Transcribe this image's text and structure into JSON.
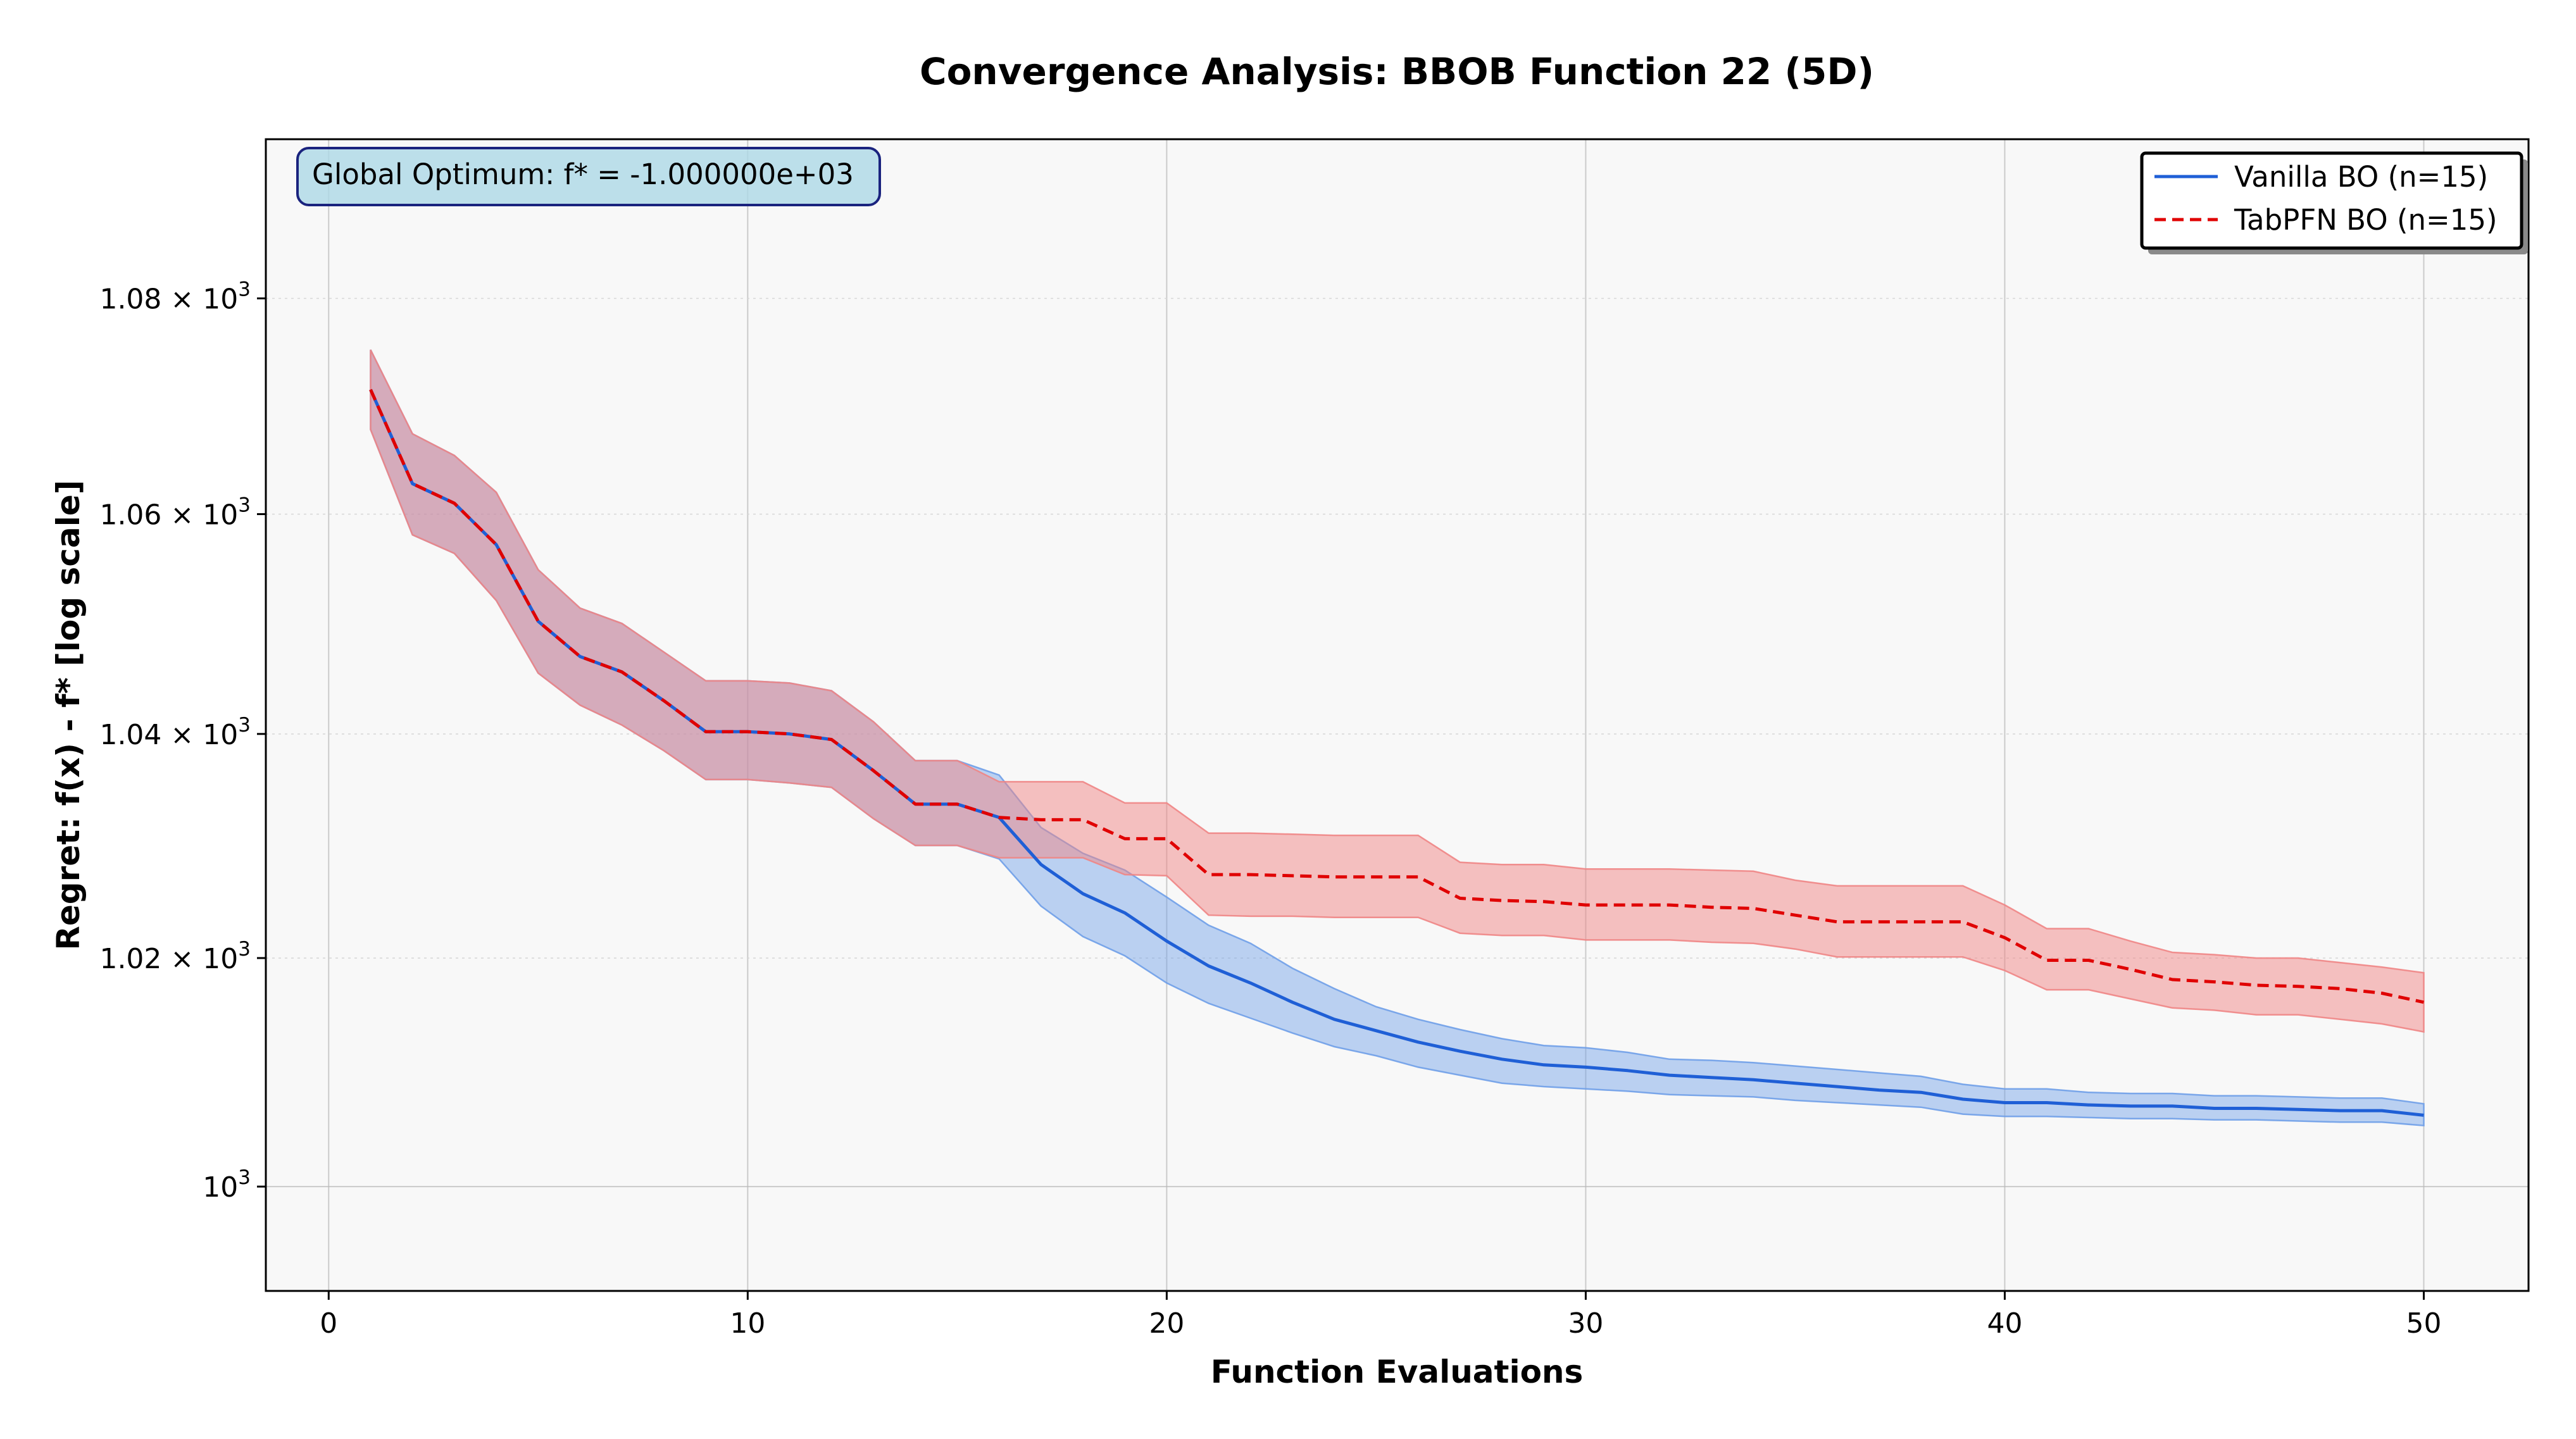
{
  "chart_data": {
    "type": "line",
    "title": "Convergence Analysis: BBOB Function 22 (5D)",
    "xlabel": "Function Evaluations",
    "ylabel": "Regret: f(x) - f* [log scale]",
    "y_scale": "log",
    "xlim": [
      -1.5,
      52.5
    ],
    "ylim": [
      991.0,
      1095.0
    ],
    "x_ticks": [
      0,
      10,
      20,
      30,
      40,
      50
    ],
    "y_ticks": [
      {
        "value": 1000,
        "mantissa": "",
        "base": "10",
        "exp": "3"
      },
      {
        "value": 1020,
        "mantissa": "1.02",
        "base": "10",
        "exp": "3"
      },
      {
        "value": 1040,
        "mantissa": "1.04",
        "base": "10",
        "exp": "3"
      },
      {
        "value": 1060,
        "mantissa": "1.06",
        "base": "10",
        "exp": "3"
      },
      {
        "value": 1080,
        "mantissa": "1.08",
        "base": "10",
        "exp": "3"
      }
    ],
    "grid": true,
    "legend_position": "top-right",
    "annotation": "Global Optimum: f* = -1.000000e+03",
    "x": [
      1,
      2,
      3,
      4,
      5,
      6,
      7,
      8,
      9,
      10,
      11,
      12,
      13,
      14,
      15,
      16,
      17,
      18,
      19,
      20,
      21,
      22,
      23,
      24,
      25,
      26,
      27,
      28,
      29,
      30,
      31,
      32,
      33,
      34,
      35,
      36,
      37,
      38,
      39,
      40,
      41,
      42,
      43,
      44,
      45,
      46,
      47,
      48,
      49,
      50
    ],
    "series": [
      {
        "name": "Vanilla BO (n=15)",
        "color": "#1f5fd6",
        "fill_color": "#6f9fe8",
        "dash": "solid",
        "mean": [
          1071.5,
          1062.8,
          1061.0,
          1057.2,
          1050.2,
          1047.0,
          1045.6,
          1043.0,
          1040.2,
          1040.2,
          1040.0,
          1039.5,
          1036.7,
          1033.7,
          1033.7,
          1032.5,
          1028.3,
          1025.7,
          1024.0,
          1021.5,
          1019.3,
          1017.8,
          1016.1,
          1014.6,
          1013.6,
          1012.6,
          1011.8,
          1011.1,
          1010.6,
          1010.4,
          1010.1,
          1009.7,
          1009.5,
          1009.3,
          1009.0,
          1008.7,
          1008.4,
          1008.2,
          1007.6,
          1007.3,
          1007.3,
          1007.1,
          1007.0,
          1007.0,
          1006.8,
          1006.8,
          1006.7,
          1006.6,
          1006.6,
          1006.2
        ],
        "lower": [
          1067.8,
          1058.1,
          1056.4,
          1052.1,
          1045.5,
          1042.6,
          1040.8,
          1038.5,
          1035.9,
          1035.9,
          1035.6,
          1035.2,
          1032.4,
          1030.0,
          1030.0,
          1028.8,
          1024.6,
          1021.9,
          1020.2,
          1017.8,
          1016.0,
          1014.7,
          1013.4,
          1012.2,
          1011.4,
          1010.4,
          1009.7,
          1009.0,
          1008.7,
          1008.5,
          1008.3,
          1008.0,
          1007.9,
          1007.8,
          1007.5,
          1007.3,
          1007.1,
          1006.9,
          1006.3,
          1006.1,
          1006.1,
          1006.0,
          1005.9,
          1005.9,
          1005.8,
          1005.8,
          1005.7,
          1005.6,
          1005.6,
          1005.3
        ],
        "upper": [
          1075.2,
          1067.4,
          1065.4,
          1062.0,
          1054.9,
          1051.4,
          1050.0,
          1047.4,
          1044.8,
          1044.8,
          1044.6,
          1043.9,
          1041.1,
          1037.6,
          1037.6,
          1036.3,
          1031.6,
          1029.3,
          1027.8,
          1025.4,
          1022.9,
          1021.3,
          1019.1,
          1017.3,
          1015.7,
          1014.6,
          1013.7,
          1012.9,
          1012.3,
          1012.1,
          1011.7,
          1011.1,
          1011.0,
          1010.8,
          1010.5,
          1010.2,
          1009.9,
          1009.6,
          1008.9,
          1008.5,
          1008.5,
          1008.2,
          1008.1,
          1008.1,
          1007.9,
          1007.9,
          1007.8,
          1007.7,
          1007.7,
          1007.2
        ]
      },
      {
        "name": "TabPFN BO (n=15)",
        "color": "#e00000",
        "fill_color": "#ef8585",
        "dash": "dashed",
        "mean": [
          1071.5,
          1062.8,
          1061.0,
          1057.2,
          1050.2,
          1047.0,
          1045.6,
          1043.0,
          1040.2,
          1040.2,
          1040.0,
          1039.5,
          1036.7,
          1033.7,
          1033.7,
          1032.5,
          1032.3,
          1032.3,
          1030.6,
          1030.6,
          1027.4,
          1027.4,
          1027.3,
          1027.2,
          1027.2,
          1027.2,
          1025.3,
          1025.1,
          1025.0,
          1024.7,
          1024.7,
          1024.7,
          1024.5,
          1024.4,
          1023.8,
          1023.2,
          1023.2,
          1023.2,
          1023.2,
          1021.8,
          1019.8,
          1019.8,
          1019.0,
          1018.1,
          1017.9,
          1017.6,
          1017.5,
          1017.3,
          1016.9,
          1016.1
        ],
        "lower": [
          1067.8,
          1058.1,
          1056.4,
          1052.1,
          1045.5,
          1042.6,
          1040.8,
          1038.5,
          1035.9,
          1035.9,
          1035.6,
          1035.2,
          1032.4,
          1030.0,
          1030.0,
          1028.9,
          1028.9,
          1028.9,
          1027.4,
          1027.3,
          1023.8,
          1023.7,
          1023.7,
          1023.6,
          1023.6,
          1023.6,
          1022.2,
          1022.0,
          1022.0,
          1021.6,
          1021.6,
          1021.6,
          1021.4,
          1021.3,
          1020.8,
          1020.1,
          1020.1,
          1020.1,
          1020.1,
          1018.9,
          1017.2,
          1017.2,
          1016.4,
          1015.6,
          1015.4,
          1015.0,
          1015.0,
          1014.6,
          1014.2,
          1013.5
        ],
        "upper": [
          1075.2,
          1067.4,
          1065.4,
          1062.0,
          1054.9,
          1051.4,
          1050.0,
          1047.4,
          1044.8,
          1044.8,
          1044.6,
          1043.9,
          1041.1,
          1037.6,
          1037.6,
          1035.7,
          1035.7,
          1035.7,
          1033.8,
          1033.8,
          1031.1,
          1031.1,
          1031.0,
          1030.9,
          1030.9,
          1030.9,
          1028.5,
          1028.3,
          1028.3,
          1027.9,
          1027.9,
          1027.9,
          1027.8,
          1027.7,
          1026.9,
          1026.4,
          1026.4,
          1026.4,
          1026.4,
          1024.7,
          1022.6,
          1022.6,
          1021.5,
          1020.5,
          1020.3,
          1020.0,
          1020.0,
          1019.6,
          1019.2,
          1018.7
        ]
      }
    ]
  }
}
